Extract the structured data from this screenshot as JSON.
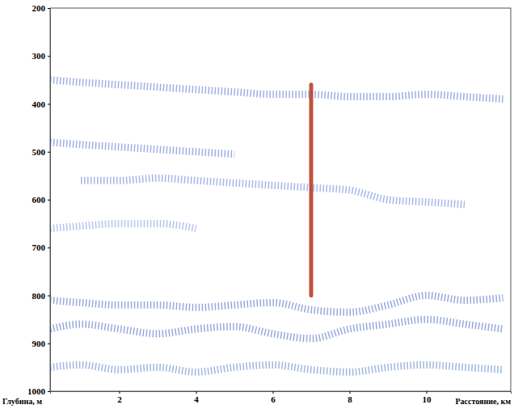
{
  "chart_data": {
    "type": "line",
    "xlabel": "Расстояние, км",
    "ylabel": "Глубина, м",
    "xlim": [
      0.2,
      12.2
    ],
    "xticks": [
      2,
      4,
      6,
      8,
      10
    ],
    "ylim": [
      200,
      1000
    ],
    "yticks": [
      200,
      300,
      400,
      500,
      600,
      700,
      800,
      900,
      1000
    ],
    "grid": false,
    "series": [
      {
        "color": "#3f5fc8",
        "line_style": "dotted",
        "x": [
          0.2,
          1,
          2,
          3,
          4,
          5,
          6,
          7,
          8,
          9,
          10,
          11,
          12
        ],
        "values": [
          350,
          355,
          360,
          365,
          370,
          375,
          380,
          380,
          385,
          385,
          380,
          385,
          390
        ]
      },
      {
        "color": "#3f5fc8",
        "line_style": "dotted",
        "x": [
          0.2,
          1,
          2,
          3,
          4,
          5,
          6,
          7,
          8,
          9,
          10,
          11,
          12
        ],
        "values": [
          480,
          485,
          490,
          495,
          500,
          505,
          null,
          null,
          null,
          null,
          null,
          null,
          null
        ]
      },
      {
        "color": "#4a6fd0",
        "line_style": "dotted",
        "x": [
          0.2,
          1,
          2,
          3,
          4,
          5,
          6,
          7,
          8,
          9,
          10,
          11,
          12
        ],
        "values": [
          null,
          560,
          560,
          555,
          560,
          565,
          570,
          575,
          580,
          600,
          605,
          610,
          null
        ]
      },
      {
        "color": "#6a8ad8",
        "line_style": "dotted",
        "x": [
          0.2,
          1,
          2,
          3,
          4,
          5,
          6,
          7,
          8,
          9,
          10,
          11,
          12
        ],
        "values": [
          660,
          655,
          650,
          650,
          660,
          null,
          null,
          null,
          null,
          null,
          null,
          null,
          null
        ]
      },
      {
        "color": "#2f55b8",
        "line_style": "dotted",
        "x": [
          0.2,
          1,
          2,
          3,
          4,
          5,
          6,
          7,
          8,
          9,
          10,
          11,
          12
        ],
        "values": [
          810,
          815,
          820,
          820,
          825,
          820,
          815,
          830,
          835,
          820,
          800,
          810,
          805
        ]
      },
      {
        "color": "#2f55b8",
        "line_style": "dotted",
        "x": [
          0.2,
          1,
          2,
          3,
          4,
          5,
          6,
          7,
          8,
          9,
          10,
          11,
          12
        ],
        "values": [
          870,
          860,
          870,
          880,
          870,
          865,
          880,
          890,
          870,
          860,
          850,
          860,
          870
        ]
      },
      {
        "color": "#3f6fc0",
        "line_style": "dotted",
        "x": [
          0.2,
          1,
          2,
          3,
          4,
          5,
          6,
          7,
          8,
          9,
          10,
          11,
          12
        ],
        "values": [
          950,
          945,
          955,
          950,
          960,
          950,
          945,
          955,
          960,
          950,
          945,
          950,
          955
        ]
      },
      {
        "color": "#b8402a",
        "line_style": "solid",
        "x": [
          7,
          7
        ],
        "values": [
          360,
          800
        ]
      }
    ]
  }
}
